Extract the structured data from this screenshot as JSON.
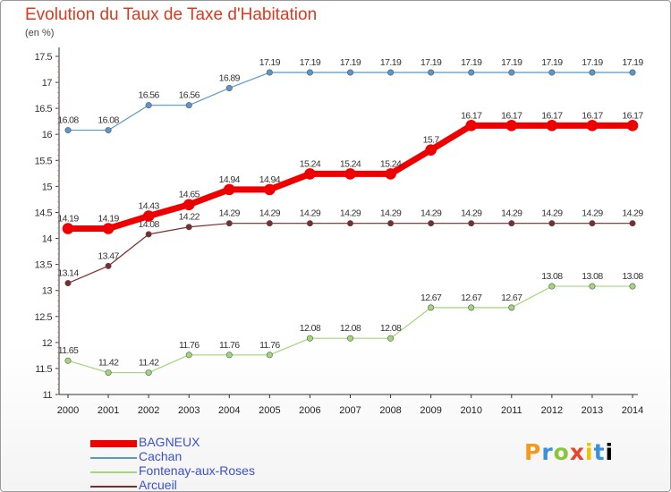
{
  "chart_data": {
    "type": "line",
    "title": "Evolution du Taux de Taxe d'Habitation",
    "subtitle": "(en %)",
    "categories": [
      "2000",
      "2001",
      "2002",
      "2003",
      "2004",
      "2005",
      "2006",
      "2007",
      "2008",
      "2009",
      "2010",
      "2011",
      "2012",
      "2013",
      "2014"
    ],
    "ylim": [
      11,
      17.5
    ],
    "yticks": [
      "11",
      "11.5",
      "12",
      "12.5",
      "13",
      "13.5",
      "14",
      "14.5",
      "15",
      "15.5",
      "16",
      "16.5",
      "17",
      "17.5"
    ],
    "grid": false,
    "legend_position": "bottom-left",
    "series": [
      {
        "name": "Cachan",
        "color": "#5a97cc",
        "width": 1.2,
        "values": [
          16.08,
          16.08,
          16.56,
          16.56,
          16.89,
          17.19,
          17.19,
          17.19,
          17.19,
          17.19,
          17.19,
          17.19,
          17.19,
          17.19,
          17.19
        ],
        "labels": [
          "16.08",
          "16.08",
          "16.56",
          "16.56",
          "16.89",
          "17.19",
          "17.19",
          "17.19",
          "17.19",
          "17.19",
          "17.19",
          "17.19",
          "17.19",
          "17.19",
          "17.19"
        ]
      },
      {
        "name": "Arcueil",
        "color": "#7b2d2d",
        "width": 1.2,
        "values": [
          13.14,
          13.47,
          14.08,
          14.22,
          14.29,
          14.29,
          14.29,
          14.29,
          14.29,
          14.29,
          14.29,
          14.29,
          14.29,
          14.29,
          14.29
        ],
        "labels": [
          "13.14",
          "13.47",
          "14.08",
          "14.22",
          "14.29",
          "14.29",
          "14.29",
          "14.29",
          "14.29",
          "14.29",
          "14.29",
          "14.29",
          "14.29",
          "14.29",
          "14.29"
        ]
      },
      {
        "name": "Fontenay-aux-Roses",
        "color": "#a2d67a",
        "width": 1.2,
        "values": [
          11.65,
          11.42,
          11.42,
          11.76,
          11.76,
          11.76,
          12.08,
          12.08,
          12.08,
          12.67,
          12.67,
          12.67,
          13.08,
          13.08,
          13.08
        ],
        "labels": [
          "11.65",
          "11.42",
          "11.42",
          "11.76",
          "11.76",
          "11.76",
          "12.08",
          "12.08",
          "12.08",
          "12.67",
          "12.67",
          "12.67",
          "13.08",
          "13.08",
          "13.08"
        ]
      },
      {
        "name": "BAGNEUX",
        "color": "#ee0000",
        "width": 7,
        "values": [
          14.19,
          14.19,
          14.43,
          14.65,
          14.94,
          14.94,
          15.24,
          15.24,
          15.24,
          15.7,
          16.17,
          16.17,
          16.17,
          16.17,
          16.17
        ],
        "labels": [
          "14.19",
          "14.19",
          "14.43",
          "14.65",
          "14.94",
          "14.94",
          "15.24",
          "15.24",
          "15.24",
          "15.7",
          "16.17",
          "16.17",
          "16.17",
          "16.17",
          "16.17"
        ]
      }
    ]
  },
  "legend": [
    {
      "label": "BAGNEUX",
      "color": "#ee0000",
      "thickness": 8
    },
    {
      "label": "Cachan",
      "color": "#5a97cc",
      "thickness": 2
    },
    {
      "label": "Fontenay-aux-Roses",
      "color": "#a2d67a",
      "thickness": 2
    },
    {
      "label": "Arcueil",
      "color": "#7b2d2d",
      "thickness": 2
    }
  ],
  "logo": {
    "letters": [
      "P",
      "r",
      "o",
      "x",
      "i",
      "t",
      "i"
    ],
    "text": "Proxiti"
  }
}
